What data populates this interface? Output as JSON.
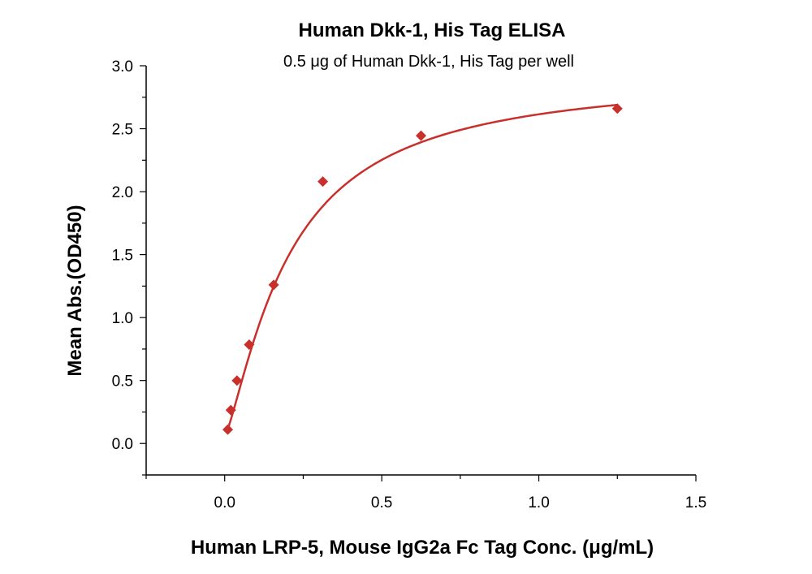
{
  "chart_data": {
    "type": "scatter",
    "title": "Human Dkk-1, His Tag ELISA",
    "subtitle": "0.5 μg of Human Dkk-1, His Tag per well",
    "xlabel": "Human LRP-5, Mouse IgG2a Fc Tag Conc. (μg/mL)",
    "ylabel": "Mean Abs.(OD450)",
    "xlim": [
      -0.25,
      1.5
    ],
    "ylim": [
      -0.25,
      3.0
    ],
    "xticks": [
      "0.0",
      "0.5",
      "1.0",
      "1.5"
    ],
    "xtick_values": [
      0,
      0.5,
      1.0,
      1.5
    ],
    "yticks": [
      "0.0",
      "0.5",
      "1.0",
      "1.5",
      "2.0",
      "2.5",
      "3.0"
    ],
    "ytick_values": [
      0,
      0.5,
      1.0,
      1.5,
      2.0,
      2.5,
      3.0
    ],
    "grid": false,
    "fit": "4-parameter logistic curve",
    "color": "#c8302c",
    "marker": "diamond",
    "series": [
      {
        "x": [
          0.0098,
          0.0195,
          0.039,
          0.078,
          0.156,
          0.3125,
          0.625,
          1.25
        ],
        "y": [
          0.11,
          0.265,
          0.5,
          0.785,
          1.26,
          2.08,
          2.445,
          2.66
        ]
      }
    ]
  }
}
